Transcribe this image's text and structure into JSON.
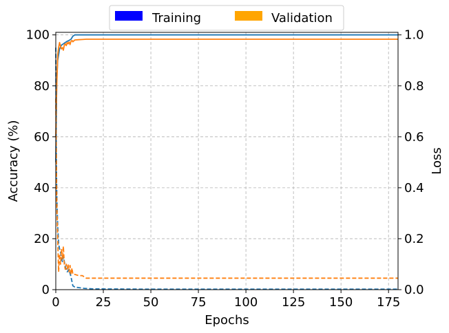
{
  "chart_data": {
    "type": "line",
    "xlabel": "Epochs",
    "ylabel": "Accuracy (%)",
    "y2label": "Loss",
    "xlim": [
      0,
      180
    ],
    "ylim": [
      0,
      101
    ],
    "y2lim": [
      0,
      1.01
    ],
    "x_ticks": [
      0,
      25,
      50,
      75,
      100,
      125,
      150,
      175
    ],
    "y_ticks": [
      0,
      20,
      40,
      60,
      80,
      100
    ],
    "y2_ticks": [
      0.0,
      0.2,
      0.4,
      0.6,
      0.8,
      1.0
    ],
    "x_tick_labels": [
      "0",
      "25",
      "50",
      "75",
      "100",
      "125",
      "150",
      "175"
    ],
    "y_tick_labels": [
      "0",
      "20",
      "40",
      "60",
      "80",
      "100"
    ],
    "y2_tick_labels": [
      "0.0",
      "0.2",
      "0.4",
      "0.6",
      "0.8",
      "1.0"
    ],
    "grid": true,
    "legend_position": "top-center",
    "legend": [
      {
        "label": "Training",
        "color": "#0000ff"
      },
      {
        "label": "Validation",
        "color": "#ffa500"
      }
    ],
    "series": [
      {
        "group": "Training",
        "metric": "accuracy",
        "axis": "left",
        "style": "solid",
        "color": "#1f77b4",
        "x": [
          0,
          0.5,
          1,
          2,
          3,
          4,
          5,
          6,
          7,
          8,
          9,
          10,
          15,
          20,
          30,
          50,
          100,
          150,
          180
        ],
        "y": [
          50,
          82,
          90,
          94.5,
          96,
          96.5,
          97,
          97.5,
          97.8,
          98.3,
          99.5,
          100,
          100,
          100,
          100,
          100,
          100,
          100,
          100
        ]
      },
      {
        "group": "Validation",
        "metric": "accuracy",
        "axis": "left",
        "style": "solid",
        "color": "#ff7f0e",
        "x": [
          0,
          0.5,
          1,
          1.5,
          2,
          2.5,
          3,
          3.5,
          4,
          4.5,
          5,
          5.5,
          6,
          6.5,
          7,
          7.5,
          8,
          8.5,
          9,
          10,
          12,
          14,
          16,
          20,
          50,
          100,
          150,
          180
        ],
        "y": [
          60,
          80,
          92,
          95,
          97,
          95.5,
          94.5,
          95,
          94,
          96,
          96.5,
          95.8,
          97,
          96.5,
          97.2,
          96.2,
          97.5,
          97.8,
          97.3,
          98,
          98.1,
          98.2,
          98.3,
          98.3,
          98.3,
          98.3,
          98.3,
          98.3
        ]
      },
      {
        "group": "Training",
        "metric": "loss",
        "axis": "right",
        "style": "dashed",
        "color": "#1f77b4",
        "x": [
          0,
          0.3,
          0.6,
          1,
          1.5,
          2,
          2.5,
          3,
          3.5,
          4,
          5,
          6,
          7,
          8,
          9,
          10,
          12,
          15,
          20,
          50,
          100,
          150,
          180
        ],
        "y": [
          0.95,
          0.5,
          0.35,
          0.25,
          0.18,
          0.16,
          0.15,
          0.12,
          0.11,
          0.13,
          0.09,
          0.07,
          0.08,
          0.05,
          0.015,
          0.01,
          0.008,
          0.005,
          0.003,
          0.002,
          0.002,
          0.002,
          0.002
        ]
      },
      {
        "group": "Validation",
        "metric": "loss",
        "axis": "right",
        "style": "dashed",
        "color": "#ff7f0e",
        "x": [
          0,
          0.5,
          1,
          1.5,
          2,
          2.5,
          3,
          3.5,
          4,
          4.5,
          5,
          5.5,
          6,
          6.5,
          7,
          7.5,
          8,
          8.5,
          9,
          10,
          12,
          14,
          15,
          16,
          17,
          20,
          50,
          100,
          150,
          180
        ],
        "y": [
          0.75,
          0.35,
          0.2,
          0.07,
          0.14,
          0.1,
          0.16,
          0.12,
          0.17,
          0.1,
          0.08,
          0.1,
          0.08,
          0.1,
          0.07,
          0.095,
          0.06,
          0.085,
          0.06,
          0.06,
          0.055,
          0.055,
          0.05,
          0.045,
          0.045,
          0.045,
          0.045,
          0.045,
          0.045,
          0.045
        ]
      }
    ]
  }
}
